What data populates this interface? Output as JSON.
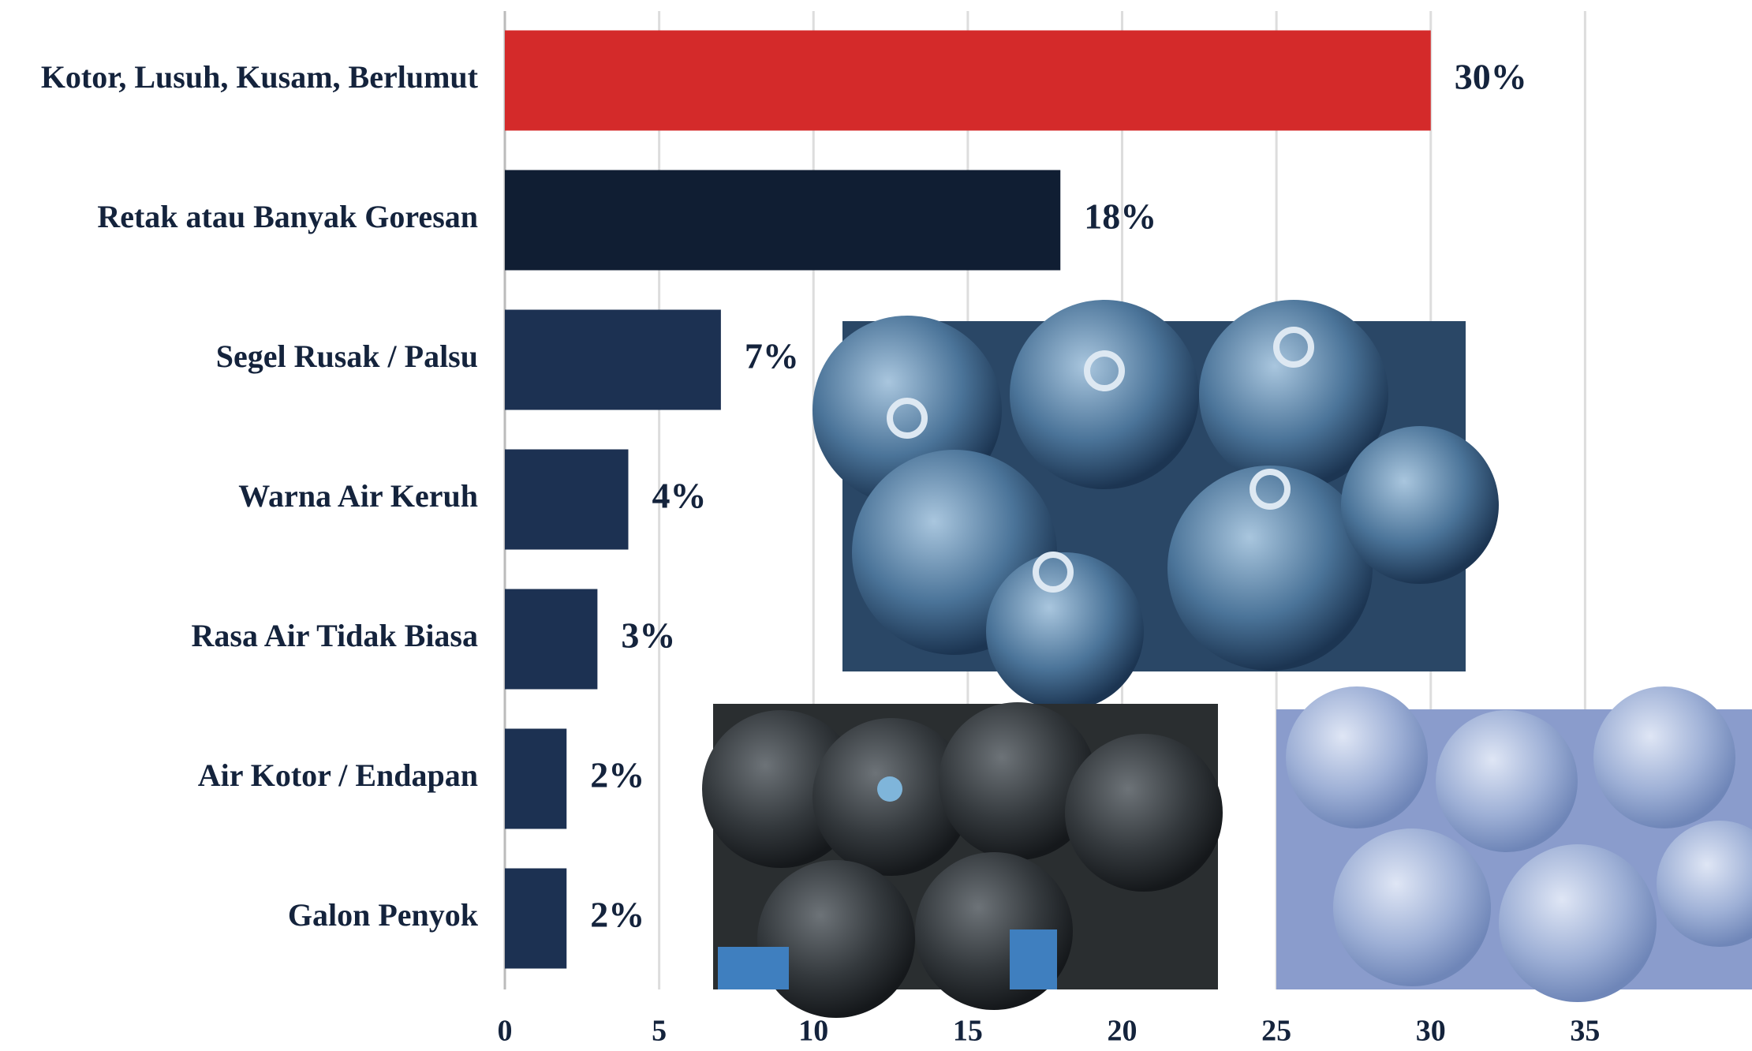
{
  "chart_data": {
    "type": "bar",
    "orientation": "horizontal",
    "categories": [
      "Kotor, Lusuh, Kusam, Berlumut",
      "Retak atau Banyak Goresan",
      "Segel Rusak / Palsu",
      "Warna Air Keruh",
      "Rasa Air Tidak Biasa",
      "Air Kotor / Endapan",
      "Galon Penyok"
    ],
    "values": [
      30,
      18,
      7,
      4,
      3,
      2,
      2
    ],
    "value_labels": [
      "30%",
      "18%",
      "7%",
      "4%",
      "3%",
      "2%",
      "2%"
    ],
    "colors": [
      "#d42a2a",
      "#101e33",
      "#1c3152",
      "#1c3152",
      "#1c3152",
      "#1c3152",
      "#1c3152"
    ],
    "xlim": [
      0,
      40
    ],
    "xticks": [
      0,
      5,
      10,
      15,
      20,
      25,
      30,
      35
    ],
    "grid": true
  }
}
